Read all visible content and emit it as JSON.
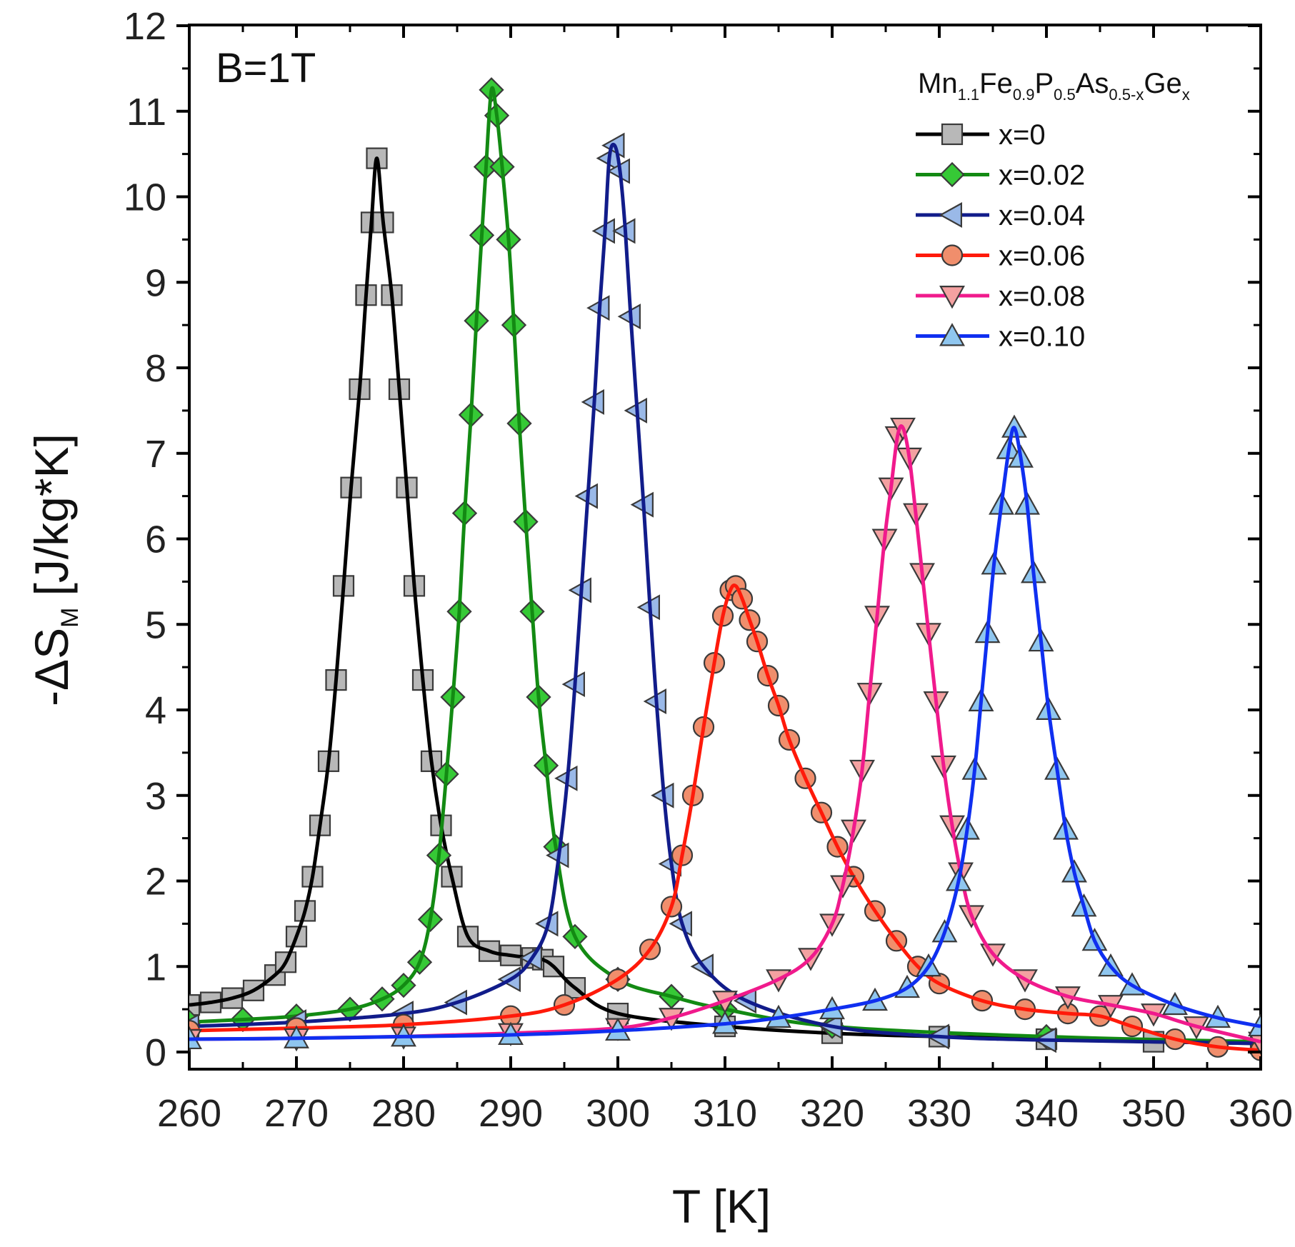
{
  "chart_data": {
    "type": "line",
    "xlabel": "T [K]",
    "ylabel_main": "-ΔS",
    "ylabel_sub": "M",
    "ylabel_units": "[J/kg*K]",
    "xlim": [
      260,
      360
    ],
    "ylim": [
      0,
      12
    ],
    "xticks": [
      260,
      270,
      280,
      290,
      300,
      310,
      320,
      330,
      340,
      350,
      360
    ],
    "yticks": [
      0,
      1,
      2,
      3,
      4,
      5,
      6,
      7,
      8,
      9,
      10,
      11,
      12
    ],
    "annotation": "B=1T",
    "legend": {
      "title_parts": [
        {
          "t": "Mn",
          "sub": false
        },
        {
          "t": "1.1",
          "sub": true
        },
        {
          "t": "Fe",
          "sub": false
        },
        {
          "t": "0.9",
          "sub": true
        },
        {
          "t": "P",
          "sub": false
        },
        {
          "t": "0.5",
          "sub": true
        },
        {
          "t": "As",
          "sub": false
        },
        {
          "t": "0.5-x",
          "sub": true
        },
        {
          "t": "Ge",
          "sub": false
        },
        {
          "t": "x",
          "sub": true
        }
      ],
      "position": "top-right"
    },
    "series": [
      {
        "name": "x=0",
        "marker": "square",
        "line_color": "#000000",
        "marker_fill": "#b8b8b8",
        "x": [
          260,
          262,
          264,
          266,
          268,
          269,
          270,
          270.8,
          271.5,
          272.2,
          273,
          273.7,
          274.4,
          275.1,
          275.9,
          276.5,
          277,
          277.5,
          278.1,
          278.9,
          279.6,
          280.3,
          281,
          281.8,
          282.6,
          283.5,
          284.5,
          286,
          288,
          290,
          292,
          293,
          294,
          296,
          300,
          310,
          320,
          330,
          340,
          350,
          360
        ],
        "values": [
          0.55,
          0.58,
          0.63,
          0.72,
          0.9,
          1.05,
          1.35,
          1.65,
          2.05,
          2.65,
          3.4,
          4.35,
          5.45,
          6.6,
          7.75,
          8.85,
          9.7,
          10.45,
          9.7,
          8.85,
          7.75,
          6.6,
          5.45,
          4.35,
          3.4,
          2.65,
          2.05,
          1.35,
          1.18,
          1.13,
          1.1,
          1.08,
          1.0,
          0.75,
          0.45,
          0.3,
          0.22,
          0.18,
          0.15,
          0.12,
          0.1
        ]
      },
      {
        "name": "x=0.02",
        "marker": "diamond",
        "line_color": "#138a13",
        "marker_fill": "#36c936",
        "x": [
          260,
          265,
          270,
          275,
          278,
          280,
          281.5,
          282.5,
          283.3,
          284,
          284.6,
          285.2,
          285.7,
          286.3,
          286.8,
          287.3,
          287.7,
          288.2,
          288.7,
          289.2,
          289.8,
          290.3,
          290.8,
          291.4,
          292,
          292.6,
          293.3,
          294.2,
          296,
          300,
          305,
          310,
          320,
          340,
          360
        ],
        "values": [
          0.35,
          0.38,
          0.42,
          0.5,
          0.62,
          0.78,
          1.05,
          1.55,
          2.3,
          3.25,
          4.15,
          5.15,
          6.3,
          7.45,
          8.55,
          9.55,
          10.35,
          11.25,
          10.95,
          10.35,
          9.5,
          8.5,
          7.35,
          6.2,
          5.15,
          4.15,
          3.35,
          2.4,
          1.35,
          0.85,
          0.65,
          0.5,
          0.3,
          0.18,
          0.12
        ]
      },
      {
        "name": "x=0.04",
        "marker": "triangle-left",
        "line_color": "#111c8a",
        "marker_fill": "#9ab9e8",
        "x": [
          260,
          270,
          280,
          285,
          290,
          292,
          293.5,
          294.5,
          295.3,
          296,
          296.6,
          297.2,
          297.8,
          298.3,
          298.8,
          299.2,
          299.7,
          300.2,
          300.7,
          301.2,
          301.8,
          302.4,
          303,
          303.6,
          304.3,
          305,
          306,
          308,
          312,
          320,
          330,
          340,
          360
        ],
        "values": [
          0.3,
          0.35,
          0.45,
          0.58,
          0.85,
          1.1,
          1.5,
          2.3,
          3.2,
          4.3,
          5.4,
          6.5,
          7.6,
          8.7,
          9.6,
          10.45,
          10.6,
          10.3,
          9.6,
          8.6,
          7.5,
          6.4,
          5.2,
          4.1,
          3.0,
          2.2,
          1.5,
          1.0,
          0.6,
          0.3,
          0.18,
          0.14,
          0.1
        ]
      },
      {
        "name": "x=0.06",
        "marker": "circle",
        "line_color": "#ff1a0a",
        "marker_fill": "#f08e6c",
        "x": [
          260,
          270,
          280,
          290,
          295,
          300,
          303,
          305,
          306,
          307,
          308,
          309,
          309.8,
          310.5,
          311,
          311.6,
          312.3,
          313,
          314,
          315,
          316,
          317.5,
          319,
          320.5,
          322,
          324,
          326,
          328,
          330,
          334,
          338,
          342,
          345,
          348,
          352,
          356,
          360
        ],
        "values": [
          0.25,
          0.28,
          0.32,
          0.42,
          0.55,
          0.85,
          1.2,
          1.7,
          2.3,
          3.0,
          3.8,
          4.55,
          5.1,
          5.4,
          5.45,
          5.3,
          5.05,
          4.8,
          4.4,
          4.05,
          3.65,
          3.2,
          2.8,
          2.4,
          2.05,
          1.65,
          1.3,
          1.0,
          0.8,
          0.6,
          0.5,
          0.45,
          0.42,
          0.3,
          0.15,
          0.06,
          0.02
        ]
      },
      {
        "name": "x=0.08",
        "marker": "triangle-down",
        "line_color": "#f01a8c",
        "marker_fill": "#f4a1a1",
        "x": [
          260,
          270,
          280,
          290,
          300,
          305,
          310,
          315,
          318,
          320,
          321,
          322,
          322.8,
          323.5,
          324.2,
          324.9,
          325.5,
          326.1,
          326.6,
          327.2,
          327.8,
          328.4,
          329,
          329.7,
          330.4,
          331.2,
          332,
          333,
          335,
          338,
          342,
          346,
          350,
          354,
          360
        ],
        "values": [
          0.15,
          0.16,
          0.18,
          0.22,
          0.28,
          0.4,
          0.6,
          0.85,
          1.1,
          1.5,
          1.95,
          2.6,
          3.3,
          4.2,
          5.1,
          6.0,
          6.6,
          7.2,
          7.3,
          6.95,
          6.3,
          5.6,
          4.9,
          4.1,
          3.35,
          2.65,
          2.1,
          1.6,
          1.15,
          0.85,
          0.65,
          0.55,
          0.45,
          0.3,
          0.12
        ]
      },
      {
        "name": "x=0.10",
        "marker": "triangle-up",
        "line_color": "#0f2ff0",
        "marker_fill": "#8fc6ef",
        "x": [
          260,
          270,
          280,
          290,
          300,
          310,
          315,
          320,
          324,
          327,
          329,
          330.5,
          331.8,
          332.6,
          333.3,
          333.9,
          334.5,
          335.1,
          335.8,
          336.5,
          337,
          337.6,
          338.2,
          338.8,
          339.5,
          340.2,
          341,
          341.8,
          342.6,
          343.5,
          344.5,
          346,
          348,
          352,
          356,
          360
        ],
        "values": [
          0.15,
          0.16,
          0.18,
          0.2,
          0.25,
          0.33,
          0.4,
          0.5,
          0.6,
          0.75,
          1.0,
          1.4,
          2.0,
          2.6,
          3.3,
          4.1,
          4.9,
          5.7,
          6.4,
          7.05,
          7.3,
          6.95,
          6.4,
          5.6,
          4.8,
          4.0,
          3.3,
          2.6,
          2.1,
          1.7,
          1.3,
          1.0,
          0.78,
          0.55,
          0.4,
          0.3
        ]
      }
    ]
  }
}
